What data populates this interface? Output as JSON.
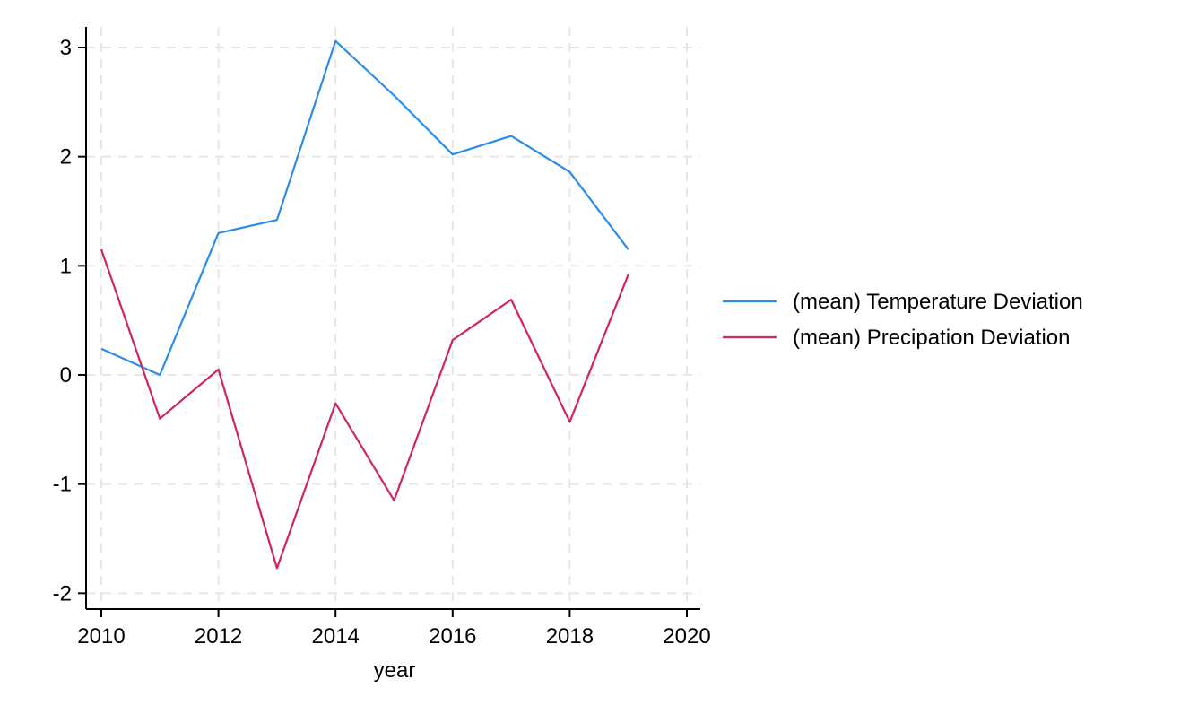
{
  "chart_data": {
    "type": "line",
    "title": "",
    "xlabel": "year",
    "ylabel": "",
    "xlim": [
      2010,
      2020
    ],
    "ylim": [
      -2.1,
      3.2
    ],
    "x_ticks": [
      2010,
      2012,
      2014,
      2016,
      2018,
      2020
    ],
    "y_ticks": [
      -2,
      -1,
      0,
      1,
      2,
      3
    ],
    "x_tick_labels": [
      "2010",
      "2012",
      "2014",
      "2016",
      "2018",
      "2020"
    ],
    "y_tick_labels": [
      "-2",
      "-1",
      "0",
      "1",
      "2",
      "3"
    ],
    "grid": true,
    "legend_position": "right",
    "x": [
      2010,
      2011,
      2012,
      2013,
      2014,
      2015,
      2016,
      2017,
      2018,
      2019
    ],
    "series": [
      {
        "name": "(mean) Temperature Deviation",
        "color": "#2a8ce8",
        "values": [
          0.24,
          0.0,
          1.3,
          1.42,
          3.06,
          2.56,
          2.02,
          2.19,
          1.86,
          1.15
        ]
      },
      {
        "name": "(mean) Precipation Deviation",
        "color": "#d0245a",
        "values": [
          1.15,
          -0.4,
          0.05,
          -1.77,
          -0.26,
          -1.15,
          0.32,
          0.69,
          -0.43,
          0.92
        ]
      }
    ]
  }
}
